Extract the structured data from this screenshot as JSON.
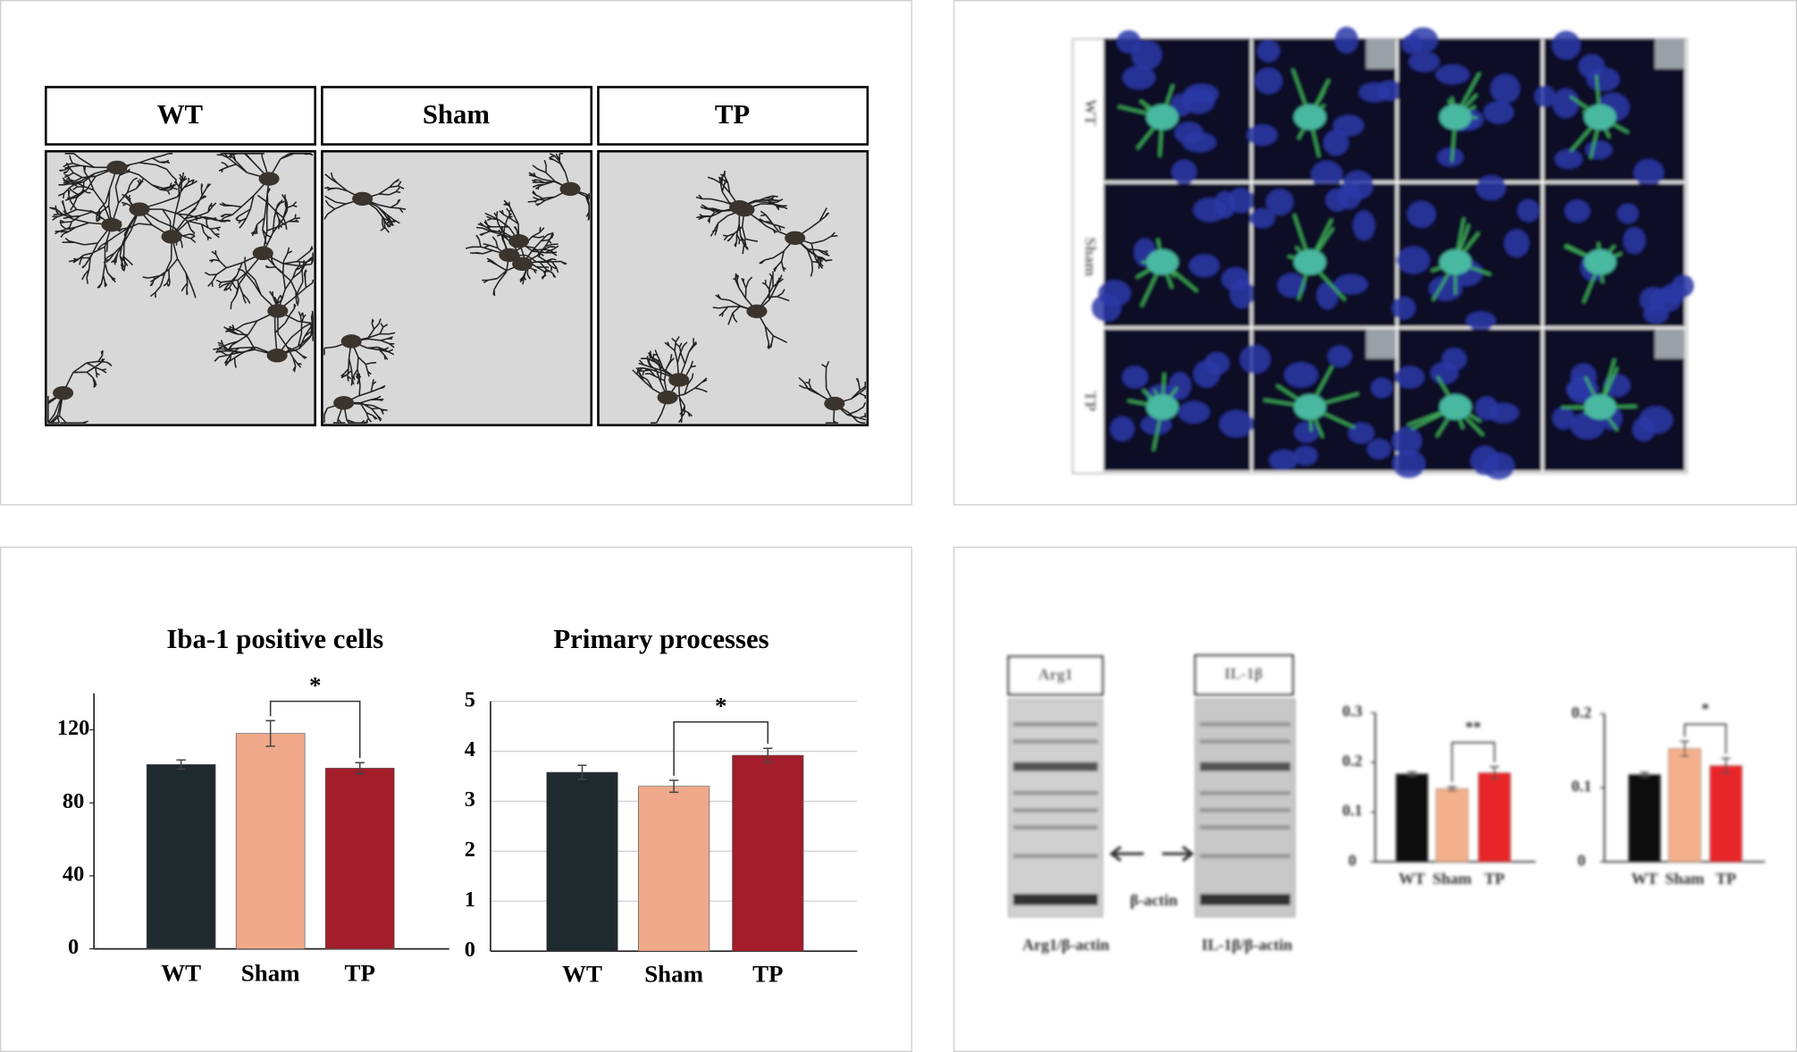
{
  "panel_a": {
    "labels": [
      "WT",
      "Sham",
      "TP"
    ]
  },
  "panel_b": {
    "row_labels": [
      "WT",
      "Sham",
      "TP"
    ]
  },
  "panel_d": {
    "blot_labels": [
      "Arg1",
      "IL-1β"
    ],
    "loading_control": "β-actin",
    "captions": [
      "Arg1/β-actin",
      "IL-1β/β-actin"
    ]
  },
  "chart_data": [
    {
      "type": "bar",
      "title": "Iba-1 positive cells",
      "categories": [
        "WT",
        "Sham",
        "TP"
      ],
      "values": [
        101,
        118,
        99
      ],
      "errors": [
        2.5,
        7,
        3
      ],
      "colors": [
        "#1f2a2e",
        "#f0a98a",
        "#a31d2a"
      ],
      "ylim": [
        0,
        140
      ],
      "yticks": [
        0,
        40,
        80,
        120
      ],
      "grid": false,
      "annotation": "*"
    },
    {
      "type": "bar",
      "title": "Primary processes",
      "categories": [
        "WT",
        "Sham",
        "TP"
      ],
      "values": [
        3.58,
        3.3,
        3.92
      ],
      "errors": [
        0.14,
        0.12,
        0.14
      ],
      "colors": [
        "#1f2a2e",
        "#f0a98a",
        "#a31d2a"
      ],
      "ylim": [
        0,
        5
      ],
      "yticks": [
        0,
        1,
        2,
        3,
        4,
        5
      ],
      "grid": true,
      "annotation": "*"
    },
    {
      "type": "bar",
      "categories": [
        "WT",
        "Sham",
        "TP"
      ],
      "values": [
        0.177,
        0.147,
        0.179
      ],
      "errors": [
        0.004,
        0.004,
        0.012
      ],
      "colors": [
        "#111111",
        "#f4b08c",
        "#e8262a"
      ],
      "ylim": [
        0,
        0.3
      ],
      "yticks": [
        0,
        0.1,
        0.2,
        0.3
      ],
      "grid": false,
      "annotation": "**"
    },
    {
      "type": "bar",
      "categories": [
        "WT",
        "Sham",
        "TP"
      ],
      "values": [
        0.118,
        0.153,
        0.13
      ],
      "errors": [
        0.003,
        0.01,
        0.01
      ],
      "colors": [
        "#111111",
        "#f4b08c",
        "#e8262a"
      ],
      "ylim": [
        0,
        0.2
      ],
      "yticks": [
        0,
        0.1,
        0.2
      ],
      "grid": false,
      "annotation": "*"
    }
  ]
}
